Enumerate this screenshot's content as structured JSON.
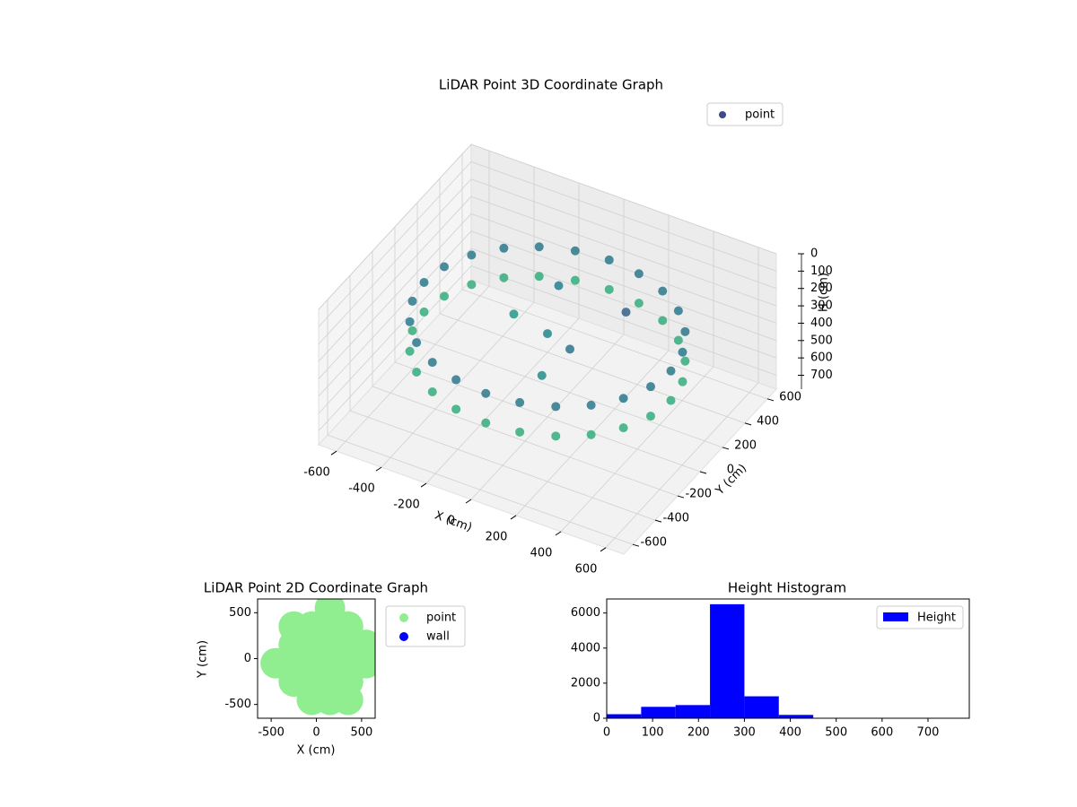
{
  "chart_data": [
    {
      "type": "scatter3d",
      "title": "LiDAR Point 3D Coordinate Graph",
      "xlabel": "X (cm)",
      "ylabel": "Y (cm)",
      "zlabel": "H (cm)",
      "xlim": [
        -680,
        680
      ],
      "ylim": [
        -680,
        680
      ],
      "zlim": [
        0,
        780
      ],
      "z_inverted": true,
      "xticks": [
        -600,
        -400,
        -200,
        0,
        200,
        400,
        600
      ],
      "yticks": [
        -600,
        -400,
        -200,
        0,
        200,
        400,
        600
      ],
      "zticks": [
        0,
        100,
        200,
        300,
        400,
        500,
        600,
        700
      ],
      "grid": true,
      "legend": "upper right",
      "colormap": [
        "#440154",
        "#3b528b",
        "#21918c",
        "#3fbc73"
      ],
      "series": [
        {
          "name": "point",
          "color": "#3e4a89",
          "x": [
            550,
            531,
            476,
            389,
            275,
            142,
            0,
            -142,
            -275,
            -389,
            -476,
            -531,
            -550,
            -531,
            -476,
            -389,
            -275,
            -142,
            0,
            142,
            275,
            389,
            476,
            531,
            550,
            531,
            476,
            389,
            275,
            142,
            0,
            -142,
            -275,
            -389,
            -476,
            -531,
            -550,
            -531,
            -476,
            -389,
            -275,
            -142,
            0,
            142,
            275,
            389,
            476,
            531,
            0,
            150,
            -200,
            250,
            100,
            -100
          ],
          "y": [
            0,
            142,
            275,
            389,
            476,
            531,
            550,
            531,
            476,
            389,
            275,
            142,
            0,
            -142,
            -275,
            -389,
            -476,
            -531,
            -550,
            -531,
            -476,
            -389,
            -275,
            -142,
            0,
            142,
            275,
            389,
            476,
            531,
            550,
            531,
            476,
            389,
            275,
            142,
            0,
            -142,
            -275,
            -389,
            -476,
            -531,
            -550,
            -531,
            -476,
            -389,
            -275,
            -142,
            0,
            -100,
            100,
            200,
            -250,
            300
          ],
          "z": [
            260,
            260,
            260,
            260,
            260,
            260,
            260,
            260,
            260,
            260,
            260,
            260,
            260,
            260,
            260,
            260,
            260,
            260,
            260,
            260,
            260,
            260,
            260,
            260,
            430,
            430,
            430,
            430,
            430,
            430,
            430,
            430,
            430,
            430,
            430,
            430,
            430,
            430,
            430,
            430,
            430,
            430,
            430,
            430,
            430,
            430,
            430,
            430,
            300,
            250,
            350,
            200,
            320,
            280
          ]
        }
      ]
    },
    {
      "type": "scatter",
      "title": "LiDAR Point 2D Coordinate Graph",
      "xlabel": "X (cm)",
      "ylabel": "Y (cm)",
      "xlim": [
        -650,
        650
      ],
      "ylim": [
        -650,
        650
      ],
      "xticks": [
        -500,
        0,
        500
      ],
      "yticks": [
        -500,
        0,
        500
      ],
      "legend": "outside right",
      "series": [
        {
          "name": "point",
          "color": "#90ee90",
          "x": [
            -450,
            -250,
            -250,
            -250,
            -250,
            -50,
            -50,
            -50,
            -50,
            -50,
            150,
            150,
            150,
            150,
            150,
            150,
            350,
            350,
            350,
            350,
            350,
            550,
            550
          ],
          "y": [
            -50,
            -250,
            -50,
            150,
            350,
            -450,
            -250,
            -50,
            150,
            350,
            -450,
            -250,
            -50,
            150,
            350,
            550,
            -450,
            -250,
            -50,
            150,
            350,
            -50,
            150
          ]
        },
        {
          "name": "wall",
          "color": "#0000ff",
          "x": [],
          "y": []
        }
      ]
    },
    {
      "type": "histogram",
      "title": "Height Histogram",
      "bins": [
        0,
        75,
        150,
        225,
        300,
        375,
        450,
        525,
        600,
        675,
        750
      ],
      "counts": [
        230,
        650,
        750,
        6500,
        1250,
        190,
        8,
        4,
        2,
        1
      ],
      "name": "Height",
      "color": "#0000ff",
      "xlim": [
        0,
        790
      ],
      "ylim": [
        0,
        6800
      ],
      "xticks": [
        0,
        100,
        200,
        300,
        400,
        500,
        600,
        700
      ],
      "yticks": [
        0,
        2000,
        4000,
        6000
      ],
      "legend": "upper right"
    }
  ]
}
